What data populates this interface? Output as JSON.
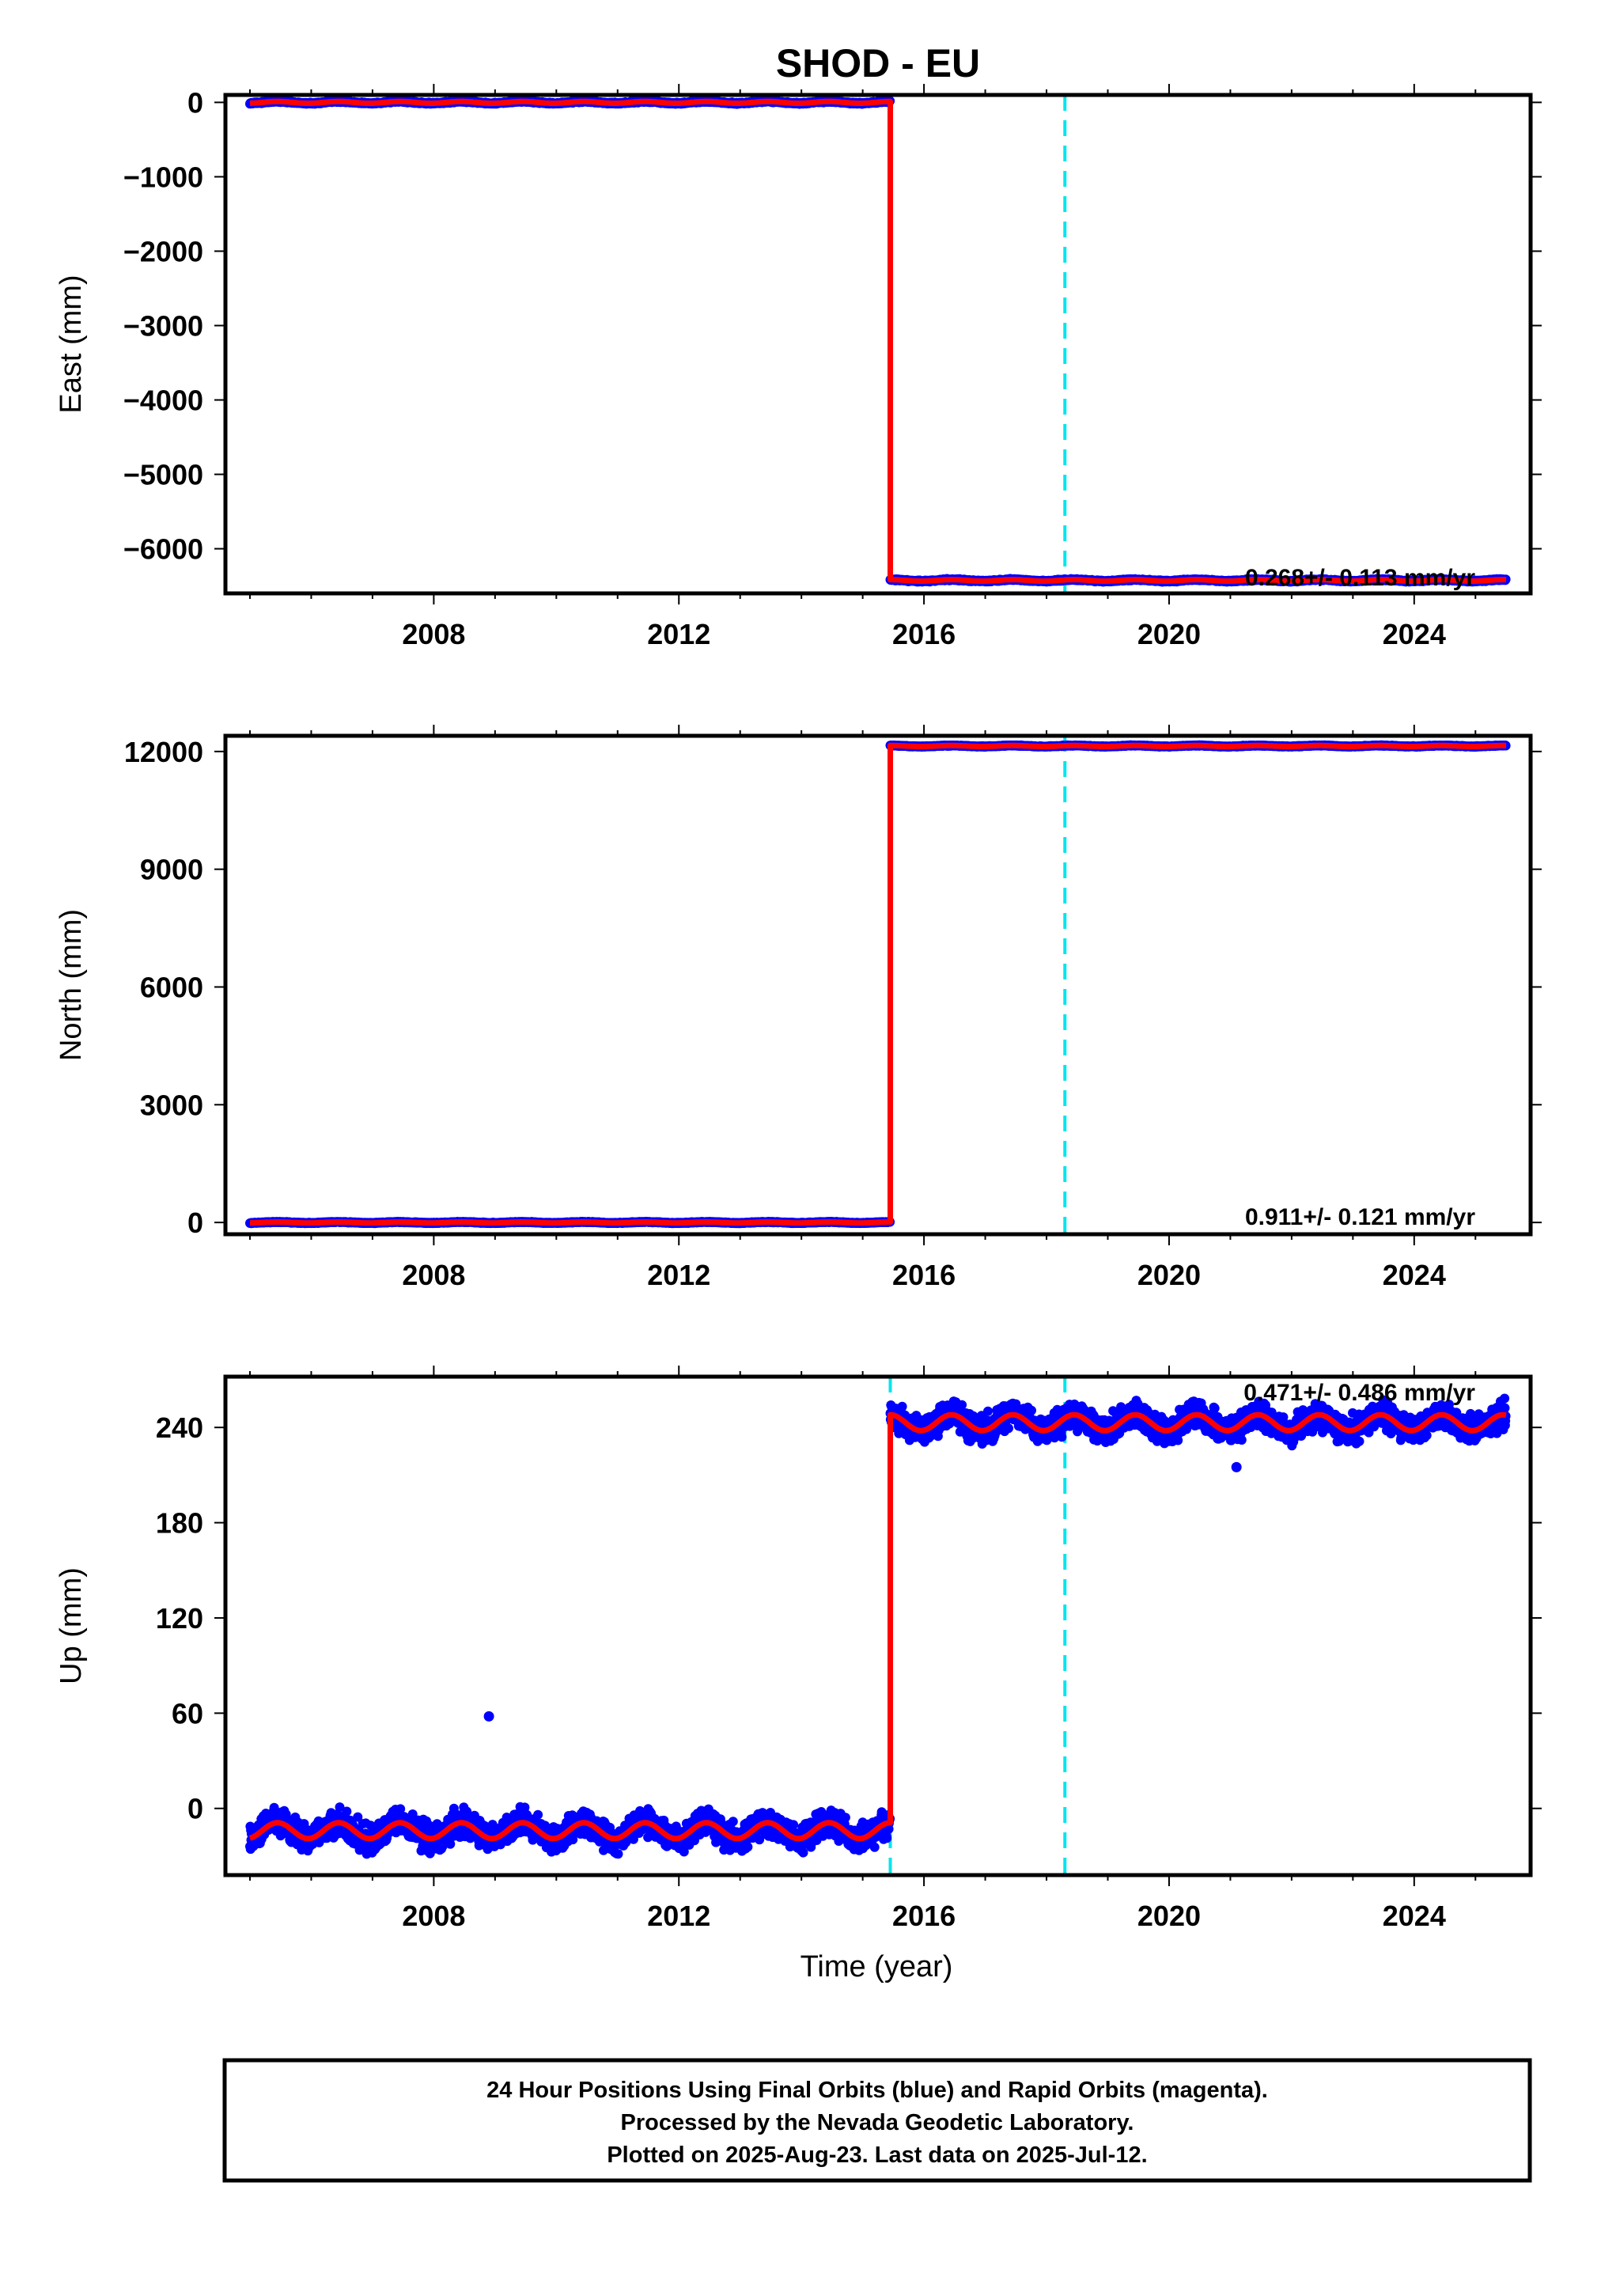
{
  "title": "SHOD - EU",
  "colors": {
    "final": "#0000ff",
    "model": "#ff0000",
    "event": "#00e5ee",
    "frame": "#000000"
  },
  "xlabel": "Time (year)",
  "caption": {
    "line1": "24 Hour Positions Using Final Orbits (blue) and Rapid Orbits (magenta).",
    "line2": "Processed by the Nevada Geodetic Laboratory.",
    "line3": "Plotted on 2025-Aug-23. Last data on 2025-Jul-12."
  },
  "chart_data": [
    {
      "type": "scatter",
      "ylabel": "East (mm)",
      "rate": "0.268+/- 0.113 mm/yr",
      "xlim": [
        2004.6,
        2025.9
      ],
      "ylim": [
        -6600,
        100
      ],
      "xticks": [
        2008,
        2012,
        2016,
        2020,
        2024
      ],
      "yticks": [
        0,
        -1000,
        -2000,
        -3000,
        -4000,
        -5000,
        -6000
      ],
      "event_lines": [
        2018.3
      ],
      "series": [
        {
          "x_start": 2005.0,
          "x_end": 2015.45,
          "level": 0,
          "amp": 12,
          "noise": 6
        },
        {
          "x_start": 2015.45,
          "x_end": 2025.5,
          "level": -6425,
          "amp": 10,
          "noise": 6
        }
      ],
      "outliers": []
    },
    {
      "type": "scatter",
      "ylabel": "North (mm)",
      "rate": "0.911+/- 0.121 mm/yr",
      "xlim": [
        2004.6,
        2025.9
      ],
      "ylim": [
        -300,
        12400
      ],
      "xticks": [
        2008,
        2012,
        2016,
        2020,
        2024
      ],
      "yticks": [
        0,
        3000,
        6000,
        9000,
        12000
      ],
      "event_lines": [
        2018.3
      ],
      "series": [
        {
          "x_start": 2005.0,
          "x_end": 2015.45,
          "level": 0,
          "amp": 12,
          "noise": 6
        },
        {
          "x_start": 2015.45,
          "x_end": 2025.5,
          "level": 12140,
          "amp": 12,
          "noise": 6
        }
      ],
      "outliers": []
    },
    {
      "type": "scatter",
      "ylabel": "Up (mm)",
      "rate": "0.471+/- 0.486 mm/yr",
      "xlim": [
        2004.6,
        2025.9
      ],
      "ylim": [
        -42,
        272
      ],
      "xticks": [
        2008,
        2012,
        2016,
        2020,
        2024
      ],
      "yticks": [
        0,
        60,
        120,
        180,
        240
      ],
      "event_lines": [
        2015.45,
        2018.3
      ],
      "series": [
        {
          "x_start": 2005.0,
          "x_end": 2015.45,
          "level": -14,
          "amp": 5,
          "noise": 5
        },
        {
          "x_start": 2015.45,
          "x_end": 2025.5,
          "level": 243,
          "amp": 5,
          "noise": 5
        }
      ],
      "outliers": [
        {
          "x": 2008.9,
          "y": 58
        },
        {
          "x": 2021.1,
          "y": 215
        }
      ]
    }
  ]
}
